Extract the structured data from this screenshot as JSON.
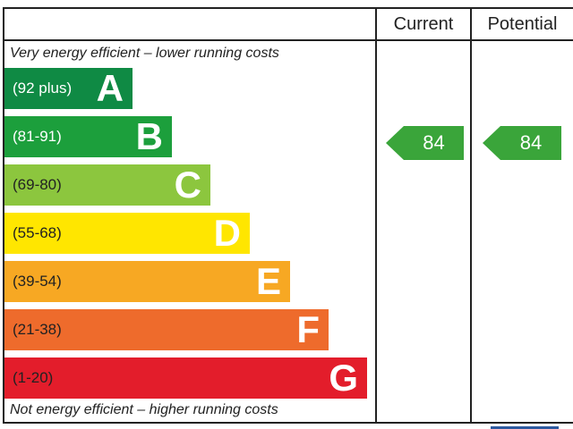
{
  "header": {
    "current_label": "Current",
    "potential_label": "Potential"
  },
  "captions": {
    "top": "Very energy efficient – lower running costs",
    "bottom": "Not energy efficient – higher running costs"
  },
  "chart_data": {
    "type": "bar",
    "categories": [
      "A",
      "B",
      "C",
      "D",
      "E",
      "F",
      "G"
    ],
    "ranges": [
      "(92 plus)",
      "(81-91)",
      "(69-80)",
      "(55-68)",
      "(39-54)",
      "(21-38)",
      "(1-20)"
    ],
    "colors": [
      "#0f8a44",
      "#1c9f3c",
      "#8cc63e",
      "#ffe600",
      "#f7a823",
      "#ee6b2c",
      "#e31d2b"
    ],
    "range_text_colors": [
      "#ffffff",
      "#ffffff",
      "#222222",
      "#222222",
      "#222222",
      "#222222",
      "#222222"
    ],
    "current": 84,
    "potential": 84,
    "rating_color": "#3aa53a"
  }
}
